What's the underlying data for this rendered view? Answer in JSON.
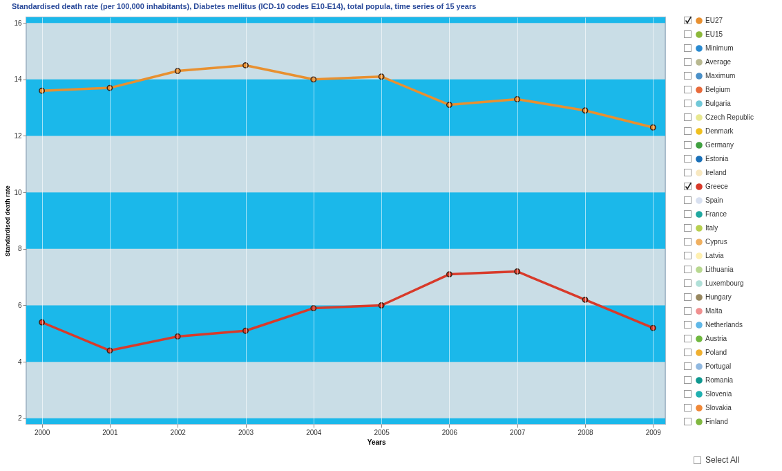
{
  "chart_data": {
    "type": "line",
    "title": "Standardised death rate (per 100,000 inhabitants), Diabetes mellitus (ICD-10 codes E10-E14), total popula, time series of 15 years",
    "xlabel": "Years",
    "ylabel": "Standardised death rate",
    "x": [
      2000,
      2001,
      2002,
      2003,
      2004,
      2005,
      2006,
      2007,
      2008,
      2009
    ],
    "xlim": [
      1999.77,
      2009.18
    ],
    "xticks": [
      2000,
      2001,
      2002,
      2003,
      2004,
      2005,
      2006,
      2007,
      2008,
      2009
    ],
    "ylim": [
      1.8,
      16.2
    ],
    "yticks": [
      2,
      4,
      6,
      8,
      10,
      12,
      14,
      16
    ],
    "grid": "x",
    "legend": "right",
    "bands": [
      {
        "axis": "y",
        "from": 1.8,
        "to": 2,
        "color": "#1bb8ea"
      },
      {
        "axis": "y",
        "from": 4,
        "to": 6,
        "color": "#1bb8ea"
      },
      {
        "axis": "y",
        "from": 8,
        "to": 10,
        "color": "#1bb8ea"
      },
      {
        "axis": "y",
        "from": 12,
        "to": 14,
        "color": "#1bb8ea"
      },
      {
        "axis": "y",
        "from": 16,
        "to": 16.2,
        "color": "#1bb8ea"
      }
    ],
    "marker": "circle",
    "line_style": "solid",
    "annotations": [
      "Select All"
    ],
    "series": [
      {
        "name": "EU27",
        "color": "#e89030",
        "values": [
          13.6,
          13.7,
          14.3,
          14.5,
          14.0,
          14.1,
          13.1,
          13.3,
          12.9,
          12.3
        ]
      },
      {
        "name": "EU15",
        "color": "#8cb83a",
        "values": [
          null,
          null,
          null,
          null,
          null,
          null,
          null,
          null,
          null,
          null
        ]
      },
      {
        "name": "Minimum",
        "color": "#2a8ad0",
        "values": [
          null,
          null,
          null,
          null,
          null,
          null,
          null,
          null,
          null,
          null
        ]
      },
      {
        "name": "Average",
        "color": "#b8b890",
        "values": [
          null,
          null,
          null,
          null,
          null,
          null,
          null,
          null,
          null,
          null
        ]
      },
      {
        "name": "Maximum",
        "color": "#4a90c8",
        "values": [
          null,
          null,
          null,
          null,
          null,
          null,
          null,
          null,
          null,
          null
        ]
      },
      {
        "name": "Belgium",
        "color": "#e86a3a",
        "values": [
          null,
          null,
          null,
          null,
          null,
          null,
          null,
          null,
          null,
          null
        ]
      },
      {
        "name": "Bulgaria",
        "color": "#70c8d8",
        "values": [
          null,
          null,
          null,
          null,
          null,
          null,
          null,
          null,
          null,
          null
        ]
      },
      {
        "name": "Czech Republic",
        "color": "#e8e890",
        "values": [
          null,
          null,
          null,
          null,
          null,
          null,
          null,
          null,
          null,
          null
        ]
      },
      {
        "name": "Denmark",
        "color": "#f0c020",
        "values": [
          null,
          null,
          null,
          null,
          null,
          null,
          null,
          null,
          null,
          null
        ]
      },
      {
        "name": "Germany",
        "color": "#40a040",
        "values": [
          null,
          null,
          null,
          null,
          null,
          null,
          null,
          null,
          null,
          null
        ]
      },
      {
        "name": "Estonia",
        "color": "#1a70b8",
        "values": [
          null,
          null,
          null,
          null,
          null,
          null,
          null,
          null,
          null,
          null
        ]
      },
      {
        "name": "Ireland",
        "color": "#f8e8c0",
        "values": [
          null,
          null,
          null,
          null,
          null,
          null,
          null,
          null,
          null,
          null
        ]
      },
      {
        "name": "Greece",
        "color": "#d83a2a",
        "values": [
          5.4,
          4.4,
          4.9,
          5.1,
          5.9,
          6.0,
          7.1,
          7.2,
          6.2,
          5.2
        ]
      },
      {
        "name": "Spain",
        "color": "#d8e0f0",
        "values": [
          null,
          null,
          null,
          null,
          null,
          null,
          null,
          null,
          null,
          null
        ]
      },
      {
        "name": "France",
        "color": "#20a8a0",
        "values": [
          null,
          null,
          null,
          null,
          null,
          null,
          null,
          null,
          null,
          null
        ]
      },
      {
        "name": "Italy",
        "color": "#b8d050",
        "values": [
          null,
          null,
          null,
          null,
          null,
          null,
          null,
          null,
          null,
          null
        ]
      },
      {
        "name": "Cyprus",
        "color": "#f0b060",
        "values": [
          null,
          null,
          null,
          null,
          null,
          null,
          null,
          null,
          null,
          null
        ]
      },
      {
        "name": "Latvia",
        "color": "#fff0b0",
        "values": [
          null,
          null,
          null,
          null,
          null,
          null,
          null,
          null,
          null,
          null
        ]
      },
      {
        "name": "Lithuania",
        "color": "#b8d890",
        "values": [
          null,
          null,
          null,
          null,
          null,
          null,
          null,
          null,
          null,
          null
        ]
      },
      {
        "name": "Luxembourg",
        "color": "#b0e0d8",
        "values": [
          null,
          null,
          null,
          null,
          null,
          null,
          null,
          null,
          null,
          null
        ]
      },
      {
        "name": "Hungary",
        "color": "#988860",
        "values": [
          null,
          null,
          null,
          null,
          null,
          null,
          null,
          null,
          null,
          null
        ]
      },
      {
        "name": "Malta",
        "color": "#f09090",
        "values": [
          null,
          null,
          null,
          null,
          null,
          null,
          null,
          null,
          null,
          null
        ]
      },
      {
        "name": "Netherlands",
        "color": "#60b8e8",
        "values": [
          null,
          null,
          null,
          null,
          null,
          null,
          null,
          null,
          null,
          null
        ]
      },
      {
        "name": "Austria",
        "color": "#70b840",
        "values": [
          null,
          null,
          null,
          null,
          null,
          null,
          null,
          null,
          null,
          null
        ]
      },
      {
        "name": "Poland",
        "color": "#f0b030",
        "values": [
          null,
          null,
          null,
          null,
          null,
          null,
          null,
          null,
          null,
          null
        ]
      },
      {
        "name": "Portugal",
        "color": "#90b8e0",
        "values": [
          null,
          null,
          null,
          null,
          null,
          null,
          null,
          null,
          null,
          null
        ]
      },
      {
        "name": "Romania",
        "color": "#109890",
        "values": [
          null,
          null,
          null,
          null,
          null,
          null,
          null,
          null,
          null,
          null
        ]
      },
      {
        "name": "Slovenia",
        "color": "#20b0b0",
        "values": [
          null,
          null,
          null,
          null,
          null,
          null,
          null,
          null,
          null,
          null
        ]
      },
      {
        "name": "Slovakia",
        "color": "#f08838",
        "values": [
          null,
          null,
          null,
          null,
          null,
          null,
          null,
          null,
          null,
          null
        ]
      },
      {
        "name": "Finland",
        "color": "#80b840",
        "values": [
          null,
          null,
          null,
          null,
          null,
          null,
          null,
          null,
          null,
          null
        ]
      }
    ]
  }
}
